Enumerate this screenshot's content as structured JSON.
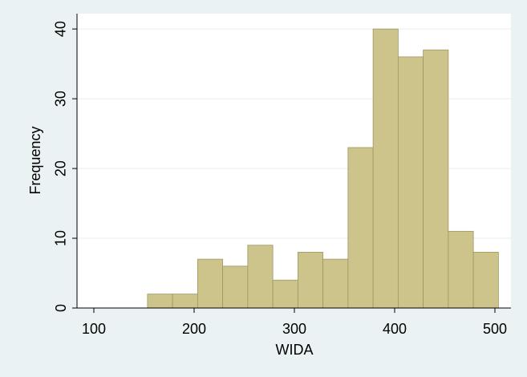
{
  "chart_data": {
    "type": "histogram",
    "xlabel": "WIDA",
    "ylabel": "Frequency",
    "bins": [
      153.5,
      178.5,
      203.5,
      228.5,
      253.5,
      278.5,
      303.5,
      328.5,
      353.5,
      378.5,
      403.5,
      428.5,
      453.5,
      478.5,
      503.5
    ],
    "values": [
      2,
      2,
      7,
      6,
      9,
      4,
      8,
      7,
      23,
      40,
      36,
      37,
      11,
      8
    ],
    "color": "#cdc48c",
    "xlim": [
      83.2,
      516
    ],
    "ylim": [
      0,
      42.2
    ],
    "xticks": [
      100,
      200,
      300,
      400,
      500
    ],
    "yticks": [
      0,
      10,
      20,
      30,
      40
    ],
    "grid": true
  }
}
